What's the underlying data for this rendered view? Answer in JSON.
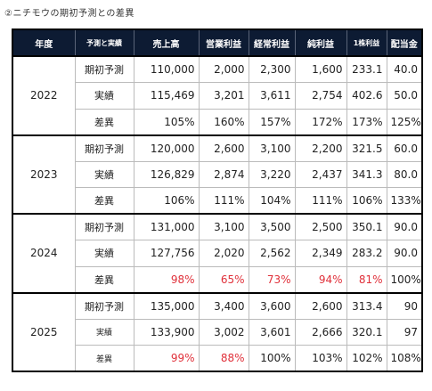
{
  "caption": "②ニチモウの期初予測との差異",
  "headers": [
    "年度",
    "予測と実績",
    "売上高",
    "営業利益",
    "経常利益",
    "純利益",
    "1株利益",
    "配当金"
  ],
  "colors": {
    "header_bg": "#0d1b33",
    "header_text": "#ffffff",
    "negative_diff": "#e0303a"
  },
  "years": [
    {
      "year": "2022",
      "rows": [
        {
          "label": "期初予測",
          "values": [
            "110,000",
            "2,000",
            "2,300",
            "1,600",
            "233.1",
            "40.0"
          ],
          "red": [
            false,
            false,
            false,
            false,
            false,
            false
          ]
        },
        {
          "label": "実績",
          "values": [
            "115,469",
            "3,201",
            "3,611",
            "2,754",
            "402.6",
            "50.0"
          ],
          "red": [
            false,
            false,
            false,
            false,
            false,
            false
          ]
        },
        {
          "label": "差異",
          "values": [
            "105%",
            "160%",
            "157%",
            "172%",
            "173%",
            "125%"
          ],
          "red": [
            false,
            false,
            false,
            false,
            false,
            false
          ]
        }
      ]
    },
    {
      "year": "2023",
      "rows": [
        {
          "label": "期初予測",
          "values": [
            "120,000",
            "2,600",
            "3,100",
            "2,200",
            "321.5",
            "60.0"
          ],
          "red": [
            false,
            false,
            false,
            false,
            false,
            false
          ]
        },
        {
          "label": "実績",
          "values": [
            "126,829",
            "2,874",
            "3,220",
            "2,437",
            "341.3",
            "80.0"
          ],
          "red": [
            false,
            false,
            false,
            false,
            false,
            false
          ]
        },
        {
          "label": "差異",
          "values": [
            "106%",
            "111%",
            "104%",
            "111%",
            "106%",
            "133%"
          ],
          "red": [
            false,
            false,
            false,
            false,
            false,
            false
          ]
        }
      ]
    },
    {
      "year": "2024",
      "rows": [
        {
          "label": "期初予測",
          "values": [
            "131,000",
            "3,100",
            "3,500",
            "2,500",
            "350.1",
            "90.0"
          ],
          "red": [
            false,
            false,
            false,
            false,
            false,
            false
          ]
        },
        {
          "label": "実績",
          "values": [
            "127,756",
            "2,020",
            "2,562",
            "2,349",
            "283.2",
            "90.0"
          ],
          "red": [
            false,
            false,
            false,
            false,
            false,
            false
          ]
        },
        {
          "label": "差異",
          "values": [
            "98%",
            "65%",
            "73%",
            "94%",
            "81%",
            "100%"
          ],
          "red": [
            true,
            true,
            true,
            true,
            true,
            false
          ]
        }
      ]
    },
    {
      "year": "2025",
      "rows": [
        {
          "label": "期初予測",
          "values": [
            "135,000",
            "3,400",
            "3,600",
            "2,600",
            "313.4",
            "90"
          ],
          "red": [
            false,
            false,
            false,
            false,
            false,
            false
          ]
        },
        {
          "label": "実績",
          "values": [
            "133,900",
            "3,002",
            "3,601",
            "2,666",
            "320.1",
            "97"
          ],
          "red": [
            false,
            false,
            false,
            false,
            false,
            false
          ]
        },
        {
          "label": "差異",
          "values": [
            "99%",
            "88%",
            "100%",
            "103%",
            "102%",
            "108%"
          ],
          "red": [
            true,
            true,
            false,
            false,
            false,
            false
          ]
        }
      ]
    }
  ]
}
